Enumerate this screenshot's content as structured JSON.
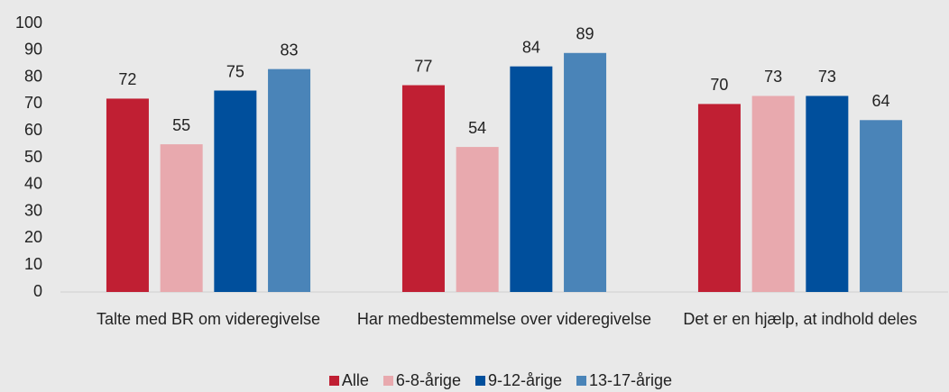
{
  "chart_data": {
    "type": "bar",
    "categories": [
      "Talte med BR om videregivelse",
      "Har medbestemmelse over videregivelse",
      "Det er en hjælp, at indhold deles"
    ],
    "series": [
      {
        "name": "Alle",
        "color": "#c01f33",
        "values": [
          72,
          77,
          70
        ]
      },
      {
        "name": "6-8-årige",
        "color": "#e8a9ae",
        "values": [
          55,
          54,
          73
        ]
      },
      {
        "name": "9-12-årige",
        "color": "#004f9c",
        "values": [
          75,
          84,
          73
        ]
      },
      {
        "name": "13-17-årige",
        "color": "#4a84b8",
        "values": [
          83,
          89,
          64
        ]
      }
    ],
    "ylim": [
      0,
      100
    ],
    "yticks": [
      0,
      10,
      20,
      30,
      40,
      50,
      60,
      70,
      80,
      90,
      100
    ],
    "grid": false,
    "legend": "bottom"
  }
}
